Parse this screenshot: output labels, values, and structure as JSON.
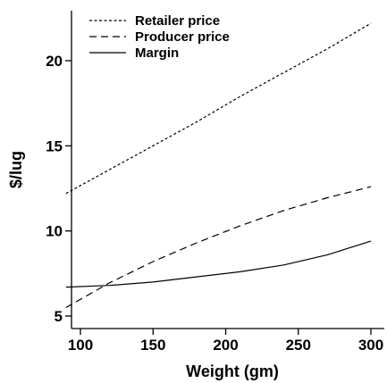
{
  "chart_data": {
    "type": "line",
    "xlabel": "Weight (gm)",
    "ylabel": "$/lug",
    "xlim": [
      90,
      300
    ],
    "ylim": [
      5,
      22
    ],
    "x_ticks": [
      100,
      150,
      200,
      250,
      300
    ],
    "y_ticks": [
      5,
      10,
      15,
      20
    ],
    "grid": false,
    "legend_position": "top-left",
    "series": [
      {
        "name": "Retailer price",
        "line_style": "dotted",
        "x": [
          90,
          120,
          150,
          180,
          210,
          240,
          270,
          300
        ],
        "y": [
          12.2,
          13.6,
          15.0,
          16.4,
          17.9,
          19.3,
          20.7,
          22.2
        ]
      },
      {
        "name": "Producer price",
        "line_style": "dashed",
        "x": [
          90,
          120,
          150,
          180,
          210,
          240,
          270,
          300
        ],
        "y": [
          5.5,
          6.95,
          8.2,
          9.3,
          10.3,
          11.2,
          11.95,
          12.6
        ]
      },
      {
        "name": "Margin",
        "line_style": "solid",
        "x": [
          90,
          120,
          150,
          180,
          210,
          240,
          270,
          300
        ],
        "y": [
          6.7,
          6.8,
          7.0,
          7.3,
          7.6,
          8.0,
          8.6,
          9.4
        ]
      }
    ]
  }
}
